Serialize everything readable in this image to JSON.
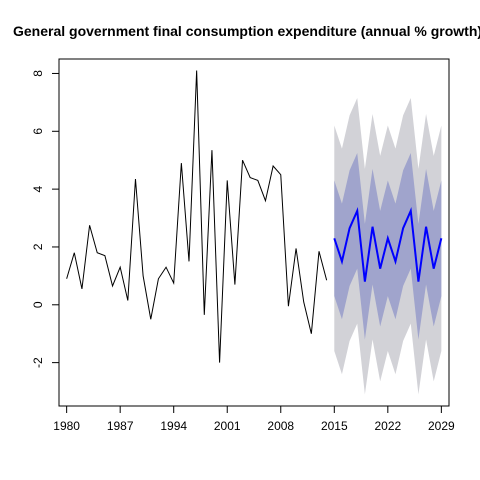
{
  "chart_data": {
    "type": "line",
    "title": "General government final consumption expenditure (annual % growth)",
    "xlim": [
      1979,
      2030
    ],
    "ylim": [
      -3.5,
      8.5
    ],
    "x_ticks": [
      1980,
      1987,
      1994,
      2001,
      2008,
      2015,
      2022,
      2029
    ],
    "y_ticks": [
      -2,
      0,
      2,
      4,
      6,
      8
    ],
    "grid": false,
    "colors": {
      "history": "#000000",
      "forecast": "#0000ff",
      "band_outer": "#d2d2d7",
      "band_inner": "#a0a4cc"
    },
    "series": [
      {
        "x": [
          1980,
          1981,
          1982,
          1983,
          1984,
          1985,
          1986,
          1987,
          1988,
          1989,
          1990,
          1991,
          1992,
          1993,
          1994,
          1995,
          1996,
          1997,
          1998,
          1999,
          2000,
          2001,
          2002,
          2003,
          2004,
          2005,
          2006,
          2007,
          2008,
          2009,
          2010,
          2011,
          2012,
          2013,
          2014
        ],
        "values": [
          0.9,
          1.8,
          0.55,
          2.75,
          1.8,
          1.7,
          0.65,
          1.3,
          0.15,
          4.35,
          1.0,
          -0.5,
          0.9,
          1.3,
          0.75,
          4.9,
          1.5,
          8.1,
          -0.35,
          5.35,
          -2.0,
          4.3,
          0.7,
          5.0,
          4.4,
          4.3,
          3.6,
          4.8,
          4.5,
          -0.05,
          1.95,
          0.1,
          -1.0,
          1.85,
          0.85
        ]
      },
      {
        "x": [
          2015,
          2016,
          2017,
          2018,
          2019,
          2020,
          2021,
          2022,
          2023,
          2024,
          2025,
          2026,
          2027,
          2028,
          2029
        ],
        "values": [
          2.3,
          1.5,
          2.65,
          3.25,
          0.8,
          2.7,
          1.25,
          2.3,
          1.5,
          2.65,
          3.25,
          0.8,
          2.7,
          1.25,
          2.3
        ],
        "lower_inner": [
          0.3,
          -0.5,
          0.65,
          1.25,
          -1.2,
          0.7,
          -0.75,
          0.3,
          -0.5,
          0.65,
          1.25,
          -1.2,
          0.7,
          -0.75,
          0.3
        ],
        "upper_inner": [
          4.3,
          3.5,
          4.65,
          5.25,
          2.8,
          4.7,
          3.25,
          4.3,
          3.5,
          4.65,
          5.25,
          2.8,
          4.7,
          3.25,
          4.3
        ],
        "lower_outer": [
          -1.6,
          -2.4,
          -1.25,
          -0.65,
          -3.1,
          -1.2,
          -2.65,
          -1.6,
          -2.4,
          -1.25,
          -0.65,
          -3.1,
          -1.2,
          -2.65,
          -1.6
        ],
        "upper_outer": [
          6.2,
          5.4,
          6.55,
          7.15,
          4.7,
          6.6,
          5.15,
          6.2,
          5.4,
          6.55,
          7.15,
          4.7,
          6.6,
          5.15,
          6.2
        ]
      }
    ]
  }
}
